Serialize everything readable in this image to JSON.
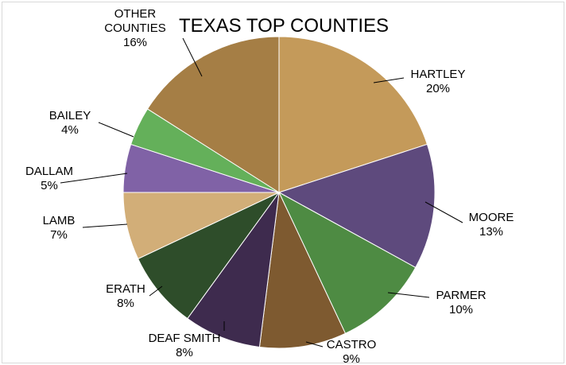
{
  "chart_data": {
    "type": "pie",
    "title": "TEXAS TOP COUNTIES",
    "slices": [
      {
        "label": "HARTLEY",
        "value": 20,
        "value_label": "20%",
        "color": "#C49A5A"
      },
      {
        "label": "MOORE",
        "value": 13,
        "value_label": "13%",
        "color": "#5E4A7D"
      },
      {
        "label": "PARMER",
        "value": 10,
        "value_label": "10%",
        "color": "#4E8B43"
      },
      {
        "label": "CASTRO",
        "value": 9,
        "value_label": "9%",
        "color": "#7E5A30"
      },
      {
        "label": "DEAF SMITH",
        "value": 8,
        "value_label": "8%",
        "color": "#3E2B4E"
      },
      {
        "label": "ERATH",
        "value": 8,
        "value_label": "8%",
        "color": "#2E4D2A"
      },
      {
        "label": "LAMB",
        "value": 7,
        "value_label": "7%",
        "color": "#D2AE78"
      },
      {
        "label": "DALLAM",
        "value": 5,
        "value_label": "5%",
        "color": "#8062A6"
      },
      {
        "label": "BAILEY",
        "value": 4,
        "value_label": "4%",
        "color": "#64B05A"
      },
      {
        "label": "OTHER COUNTIES",
        "value": 16,
        "value_label": "16%",
        "color": "#A57E45"
      }
    ]
  }
}
